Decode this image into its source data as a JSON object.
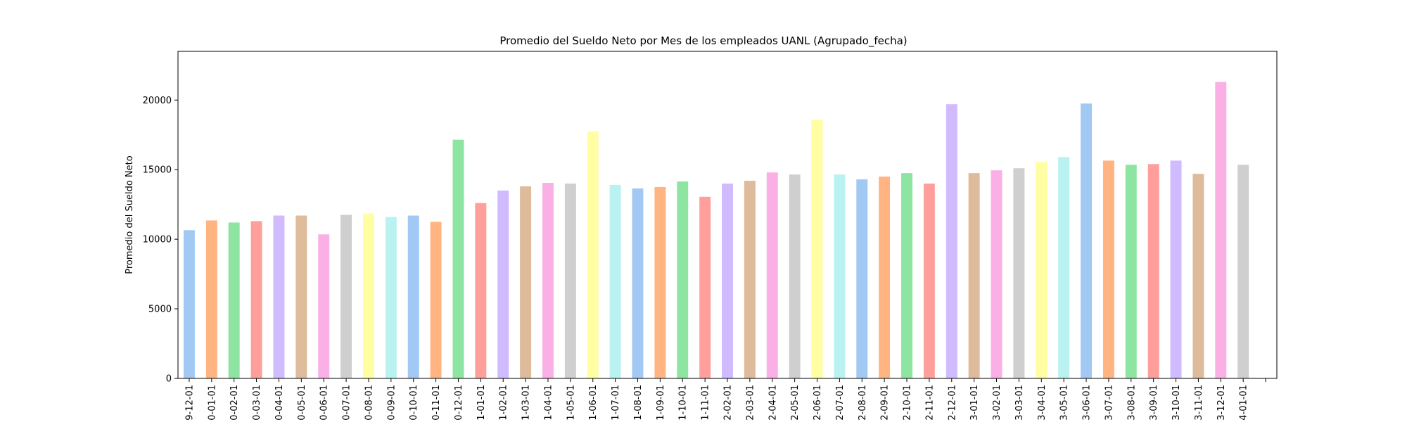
{
  "chart_data": {
    "type": "bar",
    "title": "Promedio del Sueldo Neto por Mes de los empleados UANL (Agrupado_fecha)",
    "xlabel": "",
    "ylabel": "Promedio del Sueldo Neto",
    "ylim": [
      0,
      23500
    ],
    "yticks": [
      0,
      5000,
      10000,
      15000,
      20000
    ],
    "ytick_labels": [
      "0",
      "5000",
      "10000",
      "15000",
      "20000"
    ],
    "grid": false,
    "legend": "none",
    "categories": [
      "9-12-01",
      "0-01-01",
      "0-02-01",
      "0-03-01",
      "0-04-01",
      "0-05-01",
      "0-06-01",
      "0-07-01",
      "0-08-01",
      "0-09-01",
      "0-10-01",
      "0-11-01",
      "0-12-01",
      "1-01-01",
      "1-02-01",
      "1-03-01",
      "1-04-01",
      "1-05-01",
      "1-06-01",
      "1-07-01",
      "1-08-01",
      "1-09-01",
      "1-10-01",
      "1-11-01",
      "2-02-01",
      "2-03-01",
      "2-04-01",
      "2-05-01",
      "2-06-01",
      "2-07-01",
      "2-08-01",
      "2-09-01",
      "2-10-01",
      "2-11-01",
      "2-12-01",
      "3-01-01",
      "3-02-01",
      "3-03-01",
      "3-04-01",
      "3-05-01",
      "3-06-01",
      "3-07-01",
      "3-08-01",
      "3-09-01",
      "3-10-01",
      "3-11-01",
      "3-12-01",
      "4-01-01"
    ],
    "values": [
      10650,
      11350,
      11200,
      11300,
      11700,
      11700,
      10350,
      11750,
      11850,
      11600,
      11700,
      11250,
      17150,
      12600,
      13500,
      13800,
      14050,
      14000,
      17750,
      13900,
      13650,
      13750,
      14150,
      13050,
      14000,
      14200,
      14800,
      14650,
      18600,
      14650,
      14300,
      14500,
      14750,
      14000,
      19700,
      14750,
      14950,
      15100,
      15550,
      15900,
      19750,
      15650,
      15350,
      15400,
      15650,
      14700,
      21300,
      15350
    ],
    "palette": [
      "#a1c9f4",
      "#ffb482",
      "#8de5a1",
      "#ff9f9b",
      "#d0bbff",
      "#debb9b",
      "#fab0e4",
      "#cfcfcf",
      "#fffea3",
      "#b9f2f0"
    ]
  }
}
